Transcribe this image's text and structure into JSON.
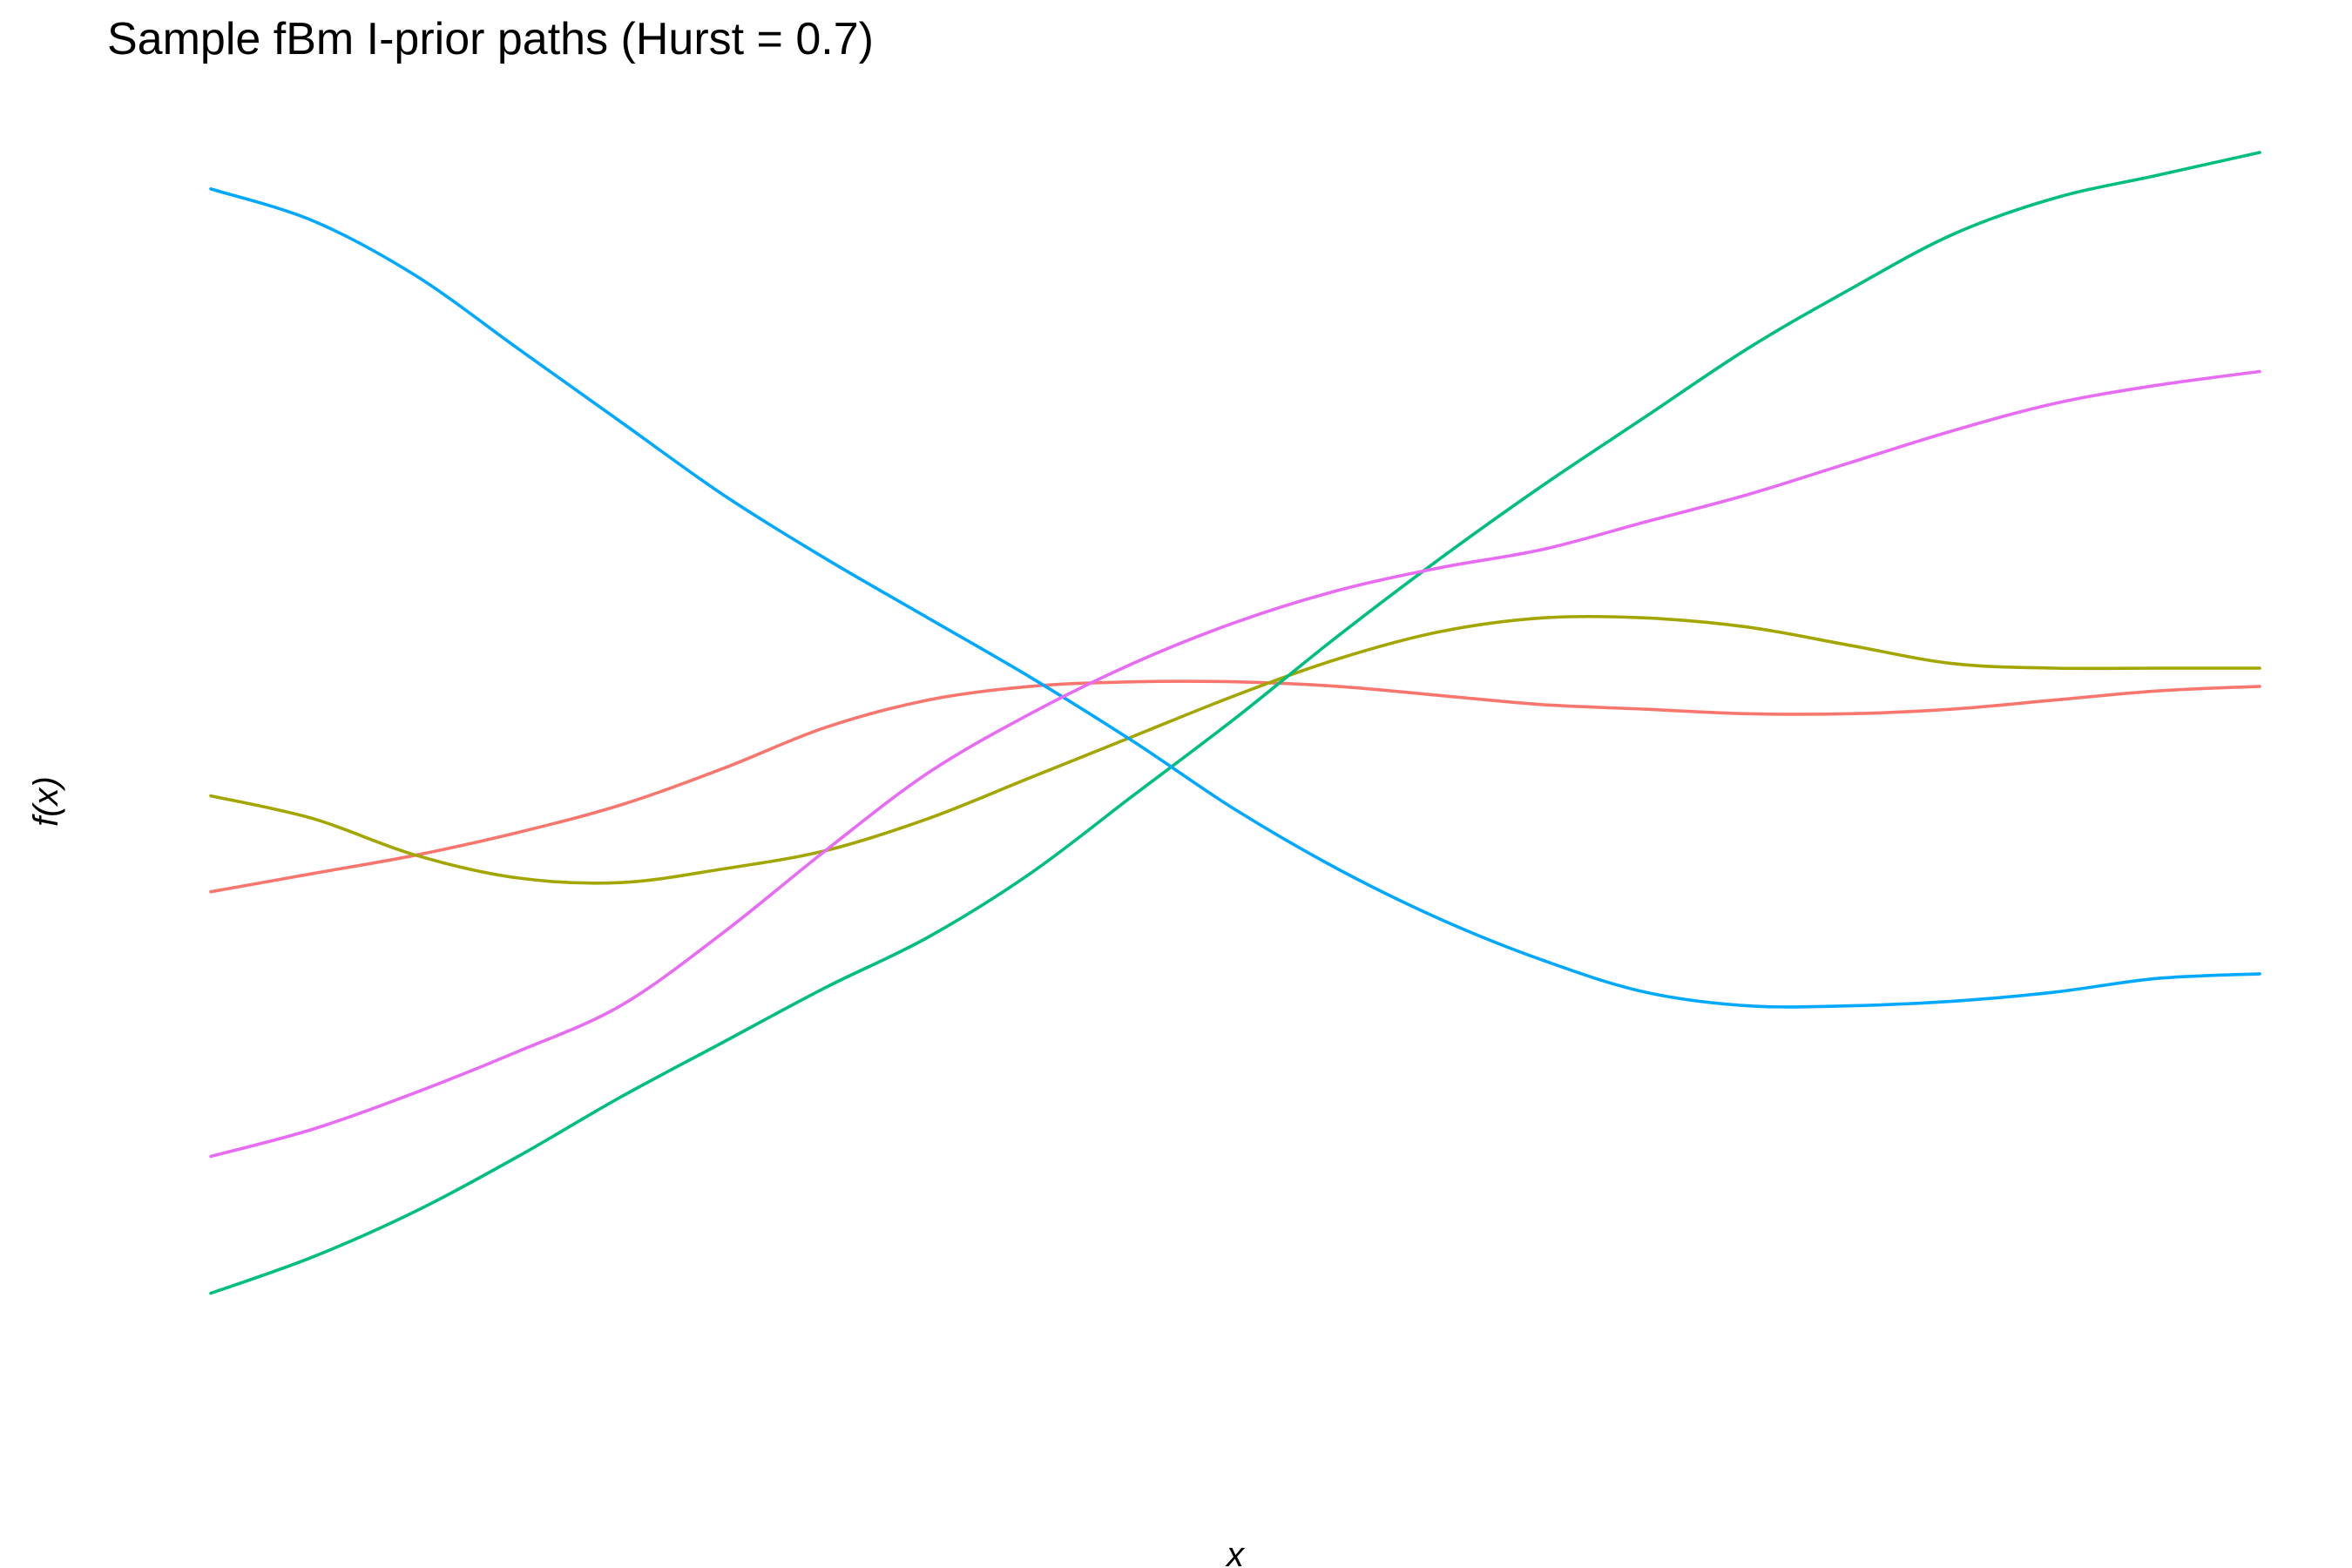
{
  "chart_data": {
    "type": "line",
    "title": "Sample fBm I-prior paths (Hurst = 0.7)",
    "xlabel": "x",
    "ylabel": "f(x)",
    "xlim": [
      0,
      1
    ],
    "ylim": [
      -1.5,
      1.35
    ],
    "grid": false,
    "legend": "none",
    "x": [
      0.0,
      0.05,
      0.1,
      0.15,
      0.2,
      0.25,
      0.3,
      0.35,
      0.4,
      0.45,
      0.5,
      0.55,
      0.6,
      0.65,
      0.7,
      0.75,
      0.8,
      0.85,
      0.9,
      0.95,
      1.0
    ],
    "series": [
      {
        "color": "#F8766D",
        "values": [
          -0.27,
          -0.23,
          -0.19,
          -0.14,
          -0.08,
          0.0,
          0.09,
          0.15,
          0.18,
          0.19,
          0.19,
          0.18,
          0.16,
          0.14,
          0.13,
          0.12,
          0.12,
          0.13,
          0.15,
          0.17,
          0.18
        ]
      },
      {
        "color": "#A3A500",
        "values": [
          -0.06,
          -0.11,
          -0.19,
          -0.24,
          -0.25,
          -0.22,
          -0.18,
          -0.11,
          -0.02,
          0.07,
          0.16,
          0.24,
          0.3,
          0.33,
          0.33,
          0.31,
          0.27,
          0.23,
          0.22,
          0.22,
          0.22
        ]
      },
      {
        "color": "#00BF7D",
        "values": [
          -1.15,
          -1.07,
          -0.97,
          -0.85,
          -0.72,
          -0.6,
          -0.48,
          -0.37,
          -0.23,
          -0.06,
          0.11,
          0.29,
          0.46,
          0.62,
          0.77,
          0.92,
          1.05,
          1.17,
          1.25,
          1.3,
          1.35
        ]
      },
      {
        "color": "#00A9FF",
        "values": [
          1.27,
          1.2,
          1.08,
          0.92,
          0.76,
          0.6,
          0.46,
          0.33,
          0.2,
          0.06,
          -0.09,
          -0.22,
          -0.33,
          -0.42,
          -0.49,
          -0.52,
          -0.52,
          -0.51,
          -0.49,
          -0.46,
          -0.45
        ]
      },
      {
        "color": "#E76BF3",
        "values": [
          -0.85,
          -0.79,
          -0.71,
          -0.62,
          -0.52,
          -0.36,
          -0.18,
          -0.01,
          0.12,
          0.23,
          0.32,
          0.39,
          0.44,
          0.48,
          0.54,
          0.6,
          0.67,
          0.74,
          0.8,
          0.84,
          0.87
        ]
      }
    ]
  }
}
